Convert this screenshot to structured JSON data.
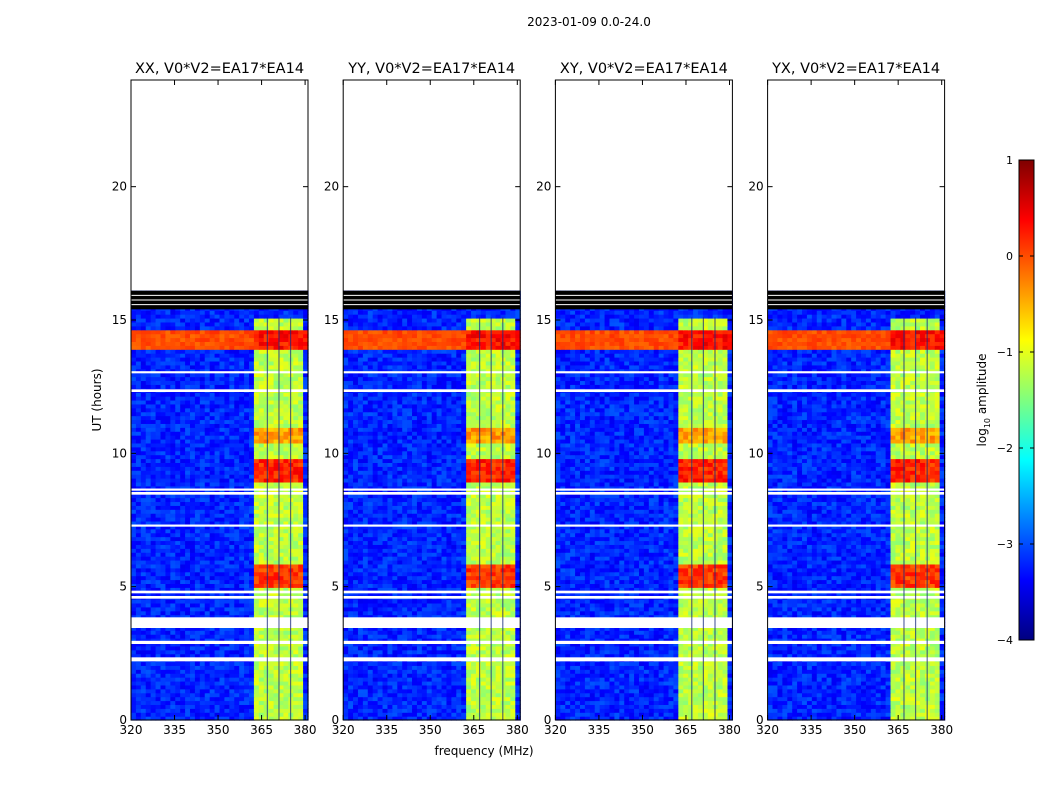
{
  "figure": {
    "suptitle": "2023-01-09 0.0-24.0",
    "xlabel": "frequency (MHz)",
    "ylabel": "UT (hours)",
    "colorbar_label_prefix": "log",
    "colorbar_label_sub": "10",
    "colorbar_label_suffix": " amplitude",
    "colorbar_ticks": [
      {
        "value": 1,
        "label": "1"
      },
      {
        "value": 0,
        "label": "0"
      },
      {
        "value": -1,
        "label": "−1"
      },
      {
        "value": -2,
        "label": "−2"
      },
      {
        "value": -3,
        "label": "−3"
      },
      {
        "value": -4,
        "label": "−4"
      }
    ],
    "colorbar_range": [
      -4,
      1
    ]
  },
  "chart_data": {
    "type": "heatmap",
    "x_range": [
      320,
      381
    ],
    "y_range": [
      0,
      24
    ],
    "xticks": [
      320,
      335,
      350,
      365,
      380
    ],
    "yticks": [
      0,
      5,
      10,
      15,
      20
    ],
    "data_end_ut": 16.1,
    "flagged_time_ranges": [
      [
        15.4,
        16.1
      ],
      [
        3.45,
        3.85
      ],
      [
        2.2,
        2.35
      ],
      [
        2.85,
        2.97
      ],
      [
        4.55,
        4.65
      ],
      [
        4.75,
        4.85
      ],
      [
        12.3,
        12.4
      ],
      [
        13.0,
        13.08
      ],
      [
        8.45,
        8.55
      ],
      [
        8.6,
        8.68
      ],
      [
        7.25,
        7.33
      ]
    ],
    "panels": [
      {
        "title": "XX, V0*V2=EA17*EA14"
      },
      {
        "title": "YY, V0*V2=EA17*EA14"
      },
      {
        "title": "XY, V0*V2=EA17*EA14"
      },
      {
        "title": "YX, V0*V2=EA17*EA14"
      }
    ],
    "bright_band": {
      "x_range": [
        363,
        379
      ],
      "y_range": [
        0,
        15.1
      ],
      "level": -1.2
    },
    "hot_time_ranges": [
      {
        "range": [
          13.9,
          14.7
        ],
        "level": 0.3
      },
      {
        "range": [
          9.0,
          9.8
        ],
        "level": 0.2
      },
      {
        "range": [
          5.0,
          5.9
        ],
        "level": 0.1
      },
      {
        "range": [
          10.4,
          11.0
        ],
        "level": -0.4
      }
    ],
    "background_level": -3.2
  }
}
